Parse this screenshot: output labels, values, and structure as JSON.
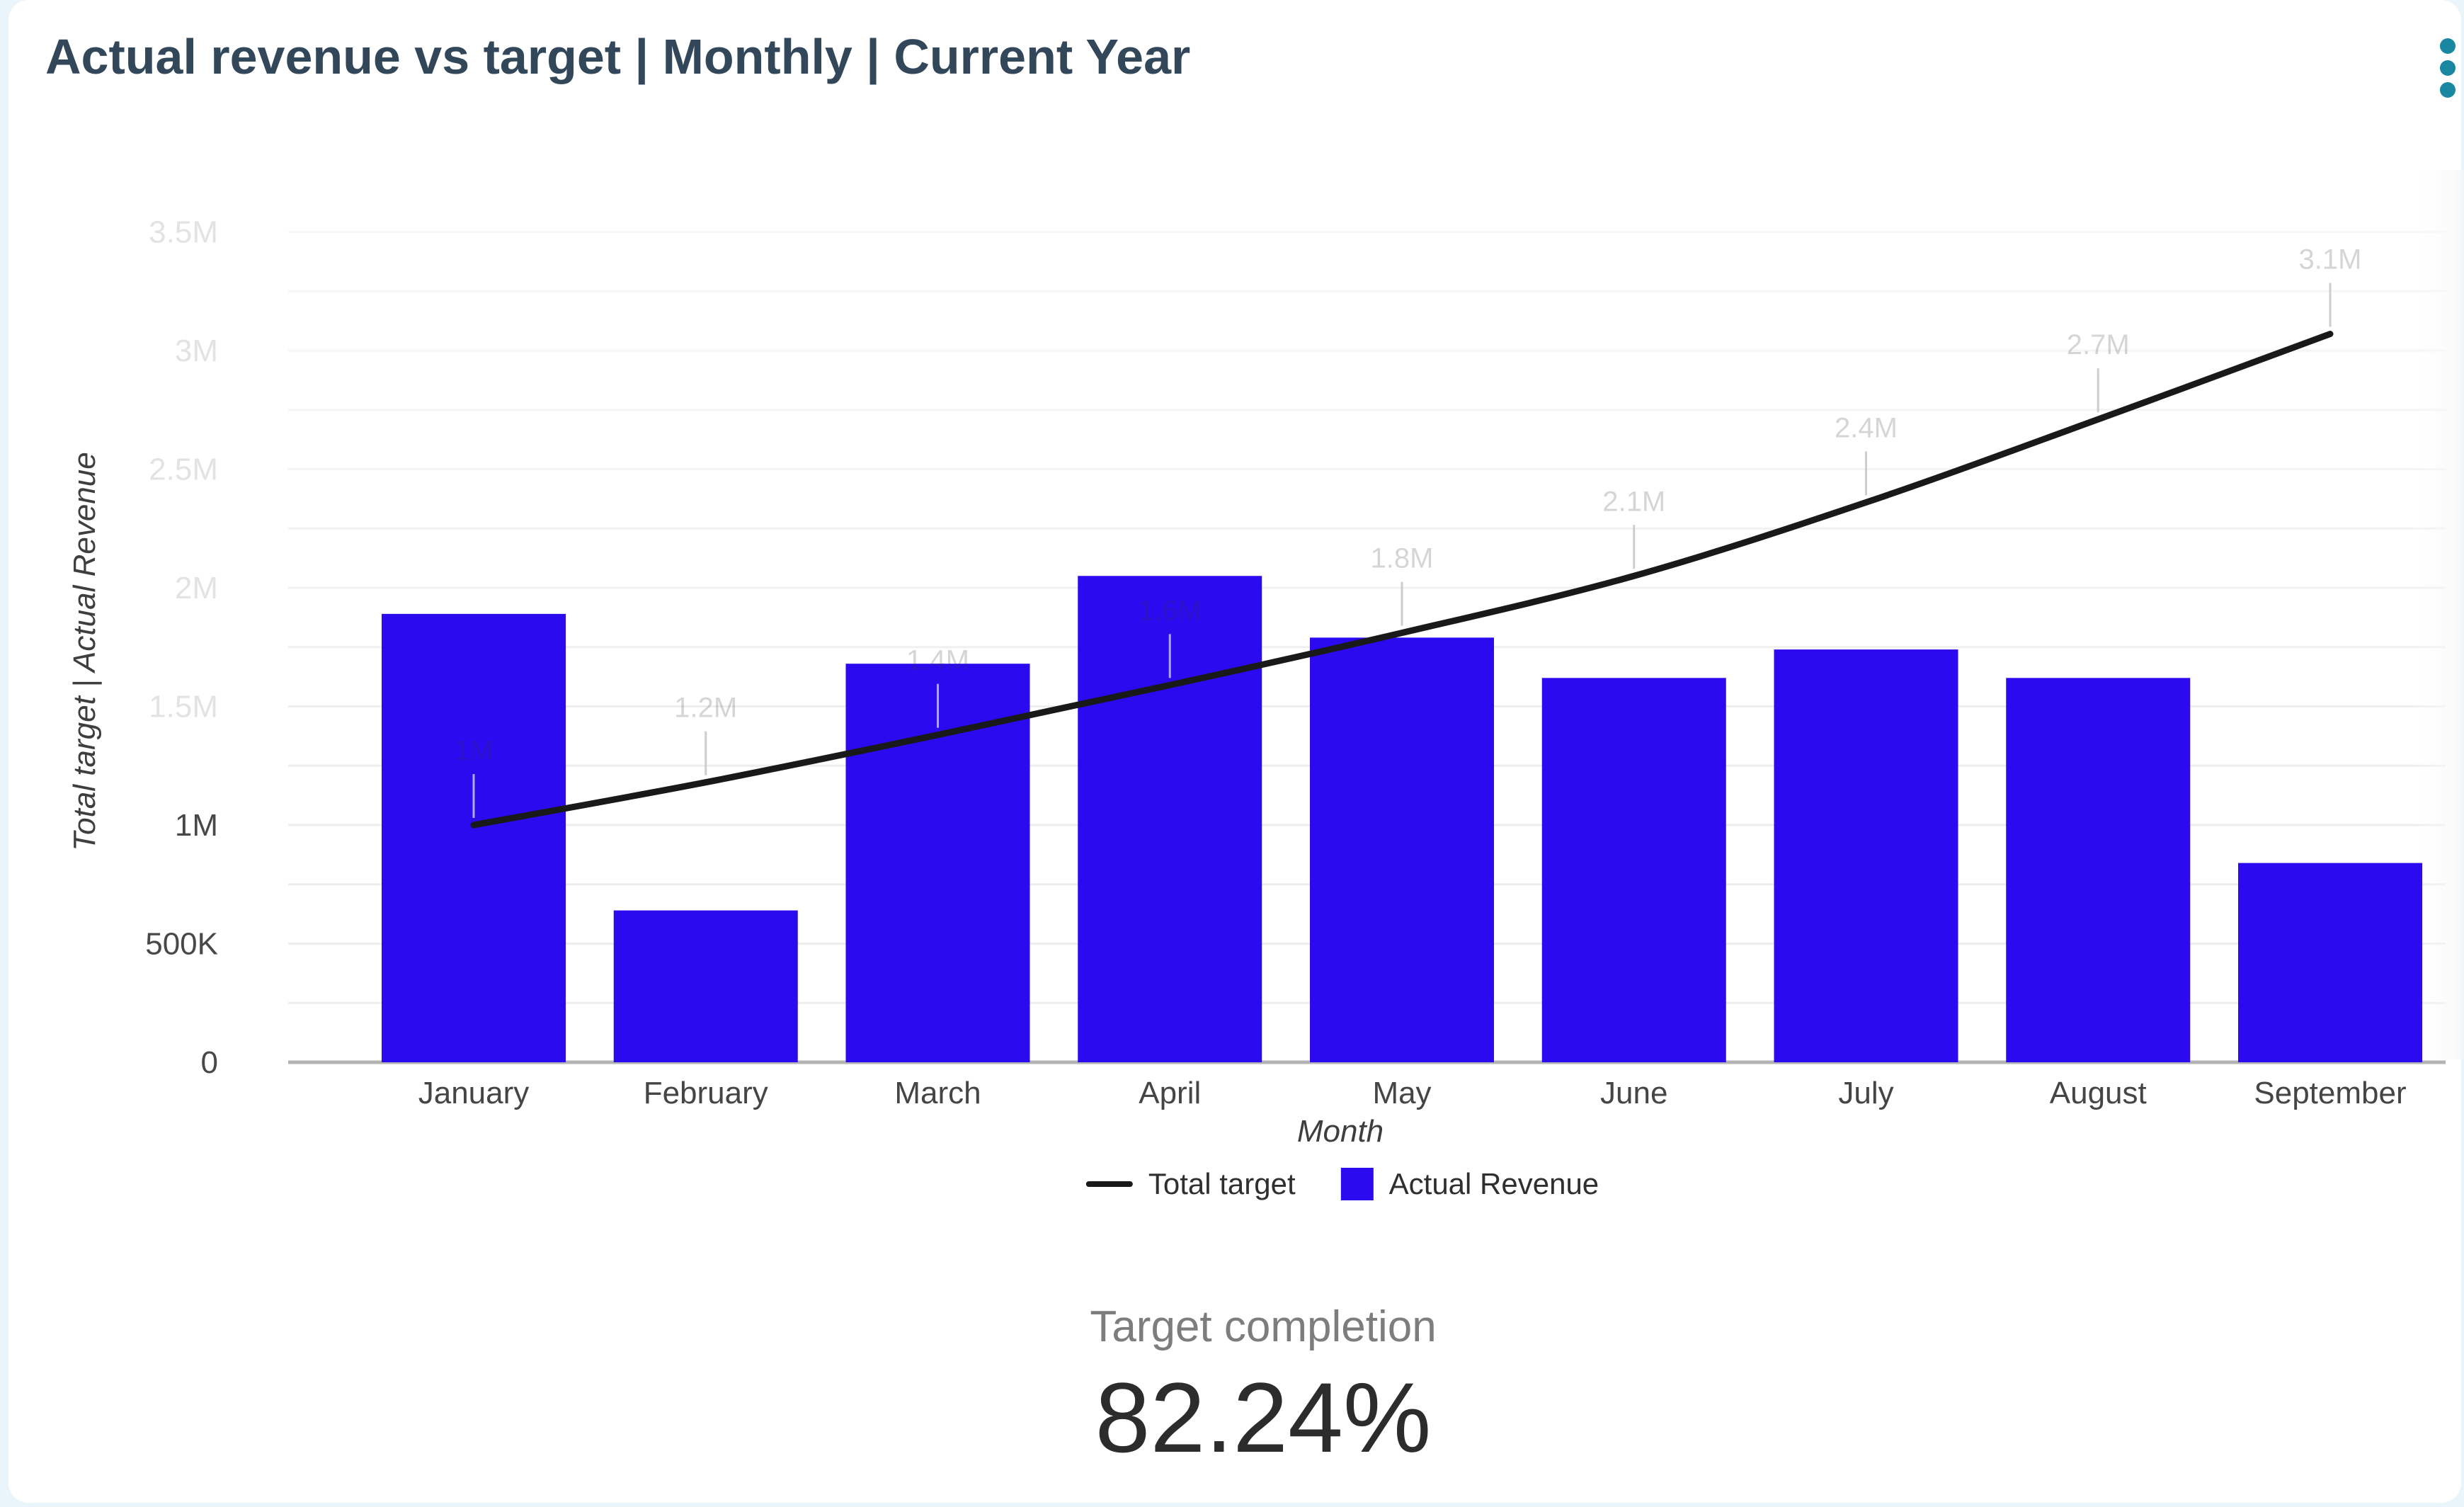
{
  "header": {
    "title": "Actual revenue vs target | Monthly | Current Year"
  },
  "colors": {
    "page_bg": "#e9f5fa",
    "card_bg": "#ffffff",
    "title": "#33475b",
    "dots": "#1a87a0",
    "bar": "#2b0af0",
    "line": "#191919",
    "grid": "#ededed",
    "baseline": "#b3b3b3",
    "tick": "#48484a",
    "tick_faded": "#e3e3e3",
    "xlabel": "#454545",
    "axis_title": "#3e3e3e",
    "legend_text": "#2f2f2f",
    "stat_label": "#7d7d7d",
    "stat_value": "#2c2c2c"
  },
  "chart_data": {
    "type": "bar",
    "subtype": "combo-bar-line",
    "title": "Actual revenue vs target | Monthly | Current Year",
    "categories": [
      "January",
      "February",
      "March",
      "April",
      "May",
      "June",
      "July",
      "August",
      "September"
    ],
    "series": [
      {
        "name": "Total target",
        "type": "line",
        "color": "#191919",
        "values": [
          1000000,
          1180000,
          1380000,
          1590000,
          1810000,
          2050000,
          2360000,
          2710000,
          3070000
        ],
        "point_labels": [
          "1M",
          "1.2M",
          "1.4M",
          "1.6M",
          "1.8M",
          "2.1M",
          "2.4M",
          "2.7M",
          "3.1M"
        ]
      },
      {
        "name": "Actual Revenue",
        "type": "bar",
        "color": "#2b0af0",
        "values": [
          1890000,
          640000,
          1680000,
          2050000,
          1790000,
          1620000,
          1740000,
          1620000,
          840000
        ]
      }
    ],
    "xlabel": "Month",
    "ylabel": "Total target | Actual Revenue",
    "ylim": [
      0,
      3600000
    ],
    "yticks": [
      {
        "value": 0,
        "label": "0",
        "faded": false
      },
      {
        "value": 500000,
        "label": "500K",
        "faded": false
      },
      {
        "value": 1000000,
        "label": "1M",
        "faded": false
      },
      {
        "value": 1500000,
        "label": "1.5M",
        "faded": true
      },
      {
        "value": 2000000,
        "label": "2M",
        "faded": true
      },
      {
        "value": 2500000,
        "label": "2.5M",
        "faded": true
      },
      {
        "value": 3000000,
        "label": "3M",
        "faded": true
      },
      {
        "value": 3500000,
        "label": "3.5M",
        "faded": true
      }
    ],
    "minor_grid_step": 250000,
    "grid": true,
    "legend_position": "bottom"
  },
  "legend": {
    "items": [
      {
        "label": "Total target",
        "swatch": "line"
      },
      {
        "label": "Actual Revenue",
        "swatch": "square"
      }
    ]
  },
  "stats": {
    "label": "Target completion",
    "value": "82.24%"
  }
}
